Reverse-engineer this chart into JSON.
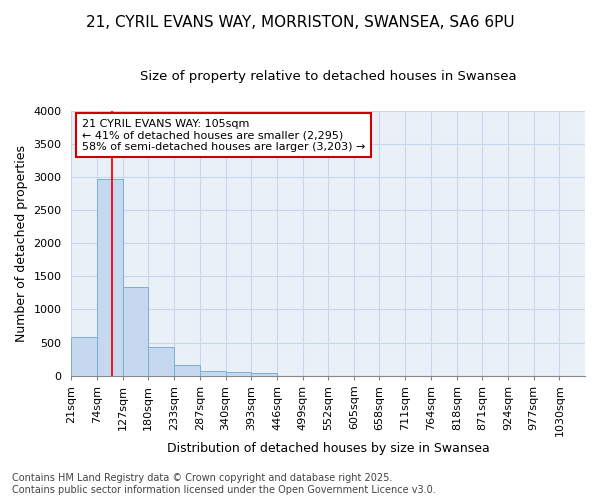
{
  "title_line1": "21, CYRIL EVANS WAY, MORRISTON, SWANSEA, SA6 6PU",
  "title_line2": "Size of property relative to detached houses in Swansea",
  "xlabel": "Distribution of detached houses by size in Swansea",
  "ylabel": "Number of detached properties",
  "footer_line1": "Contains HM Land Registry data © Crown copyright and database right 2025.",
  "footer_line2": "Contains public sector information licensed under the Open Government Licence v3.0.",
  "annotation_line1": "21 CYRIL EVANS WAY: 105sqm",
  "annotation_line2": "← 41% of detached houses are smaller (2,295)",
  "annotation_line3": "58% of semi-detached houses are larger (3,203) →",
  "bar_edges": [
    21,
    74,
    127,
    180,
    233,
    287,
    340,
    393,
    446,
    499,
    552,
    605,
    658,
    711,
    764,
    818,
    871,
    924,
    977,
    1030,
    1083
  ],
  "bar_heights": [
    590,
    2970,
    1340,
    430,
    160,
    75,
    50,
    45,
    0,
    0,
    0,
    0,
    0,
    0,
    0,
    0,
    0,
    0,
    0,
    0
  ],
  "bar_color": "#c5d8f0",
  "bar_edge_color": "#7aafd4",
  "red_line_x": 105,
  "ylim": [
    0,
    4000
  ],
  "yticks": [
    0,
    500,
    1000,
    1500,
    2000,
    2500,
    3000,
    3500,
    4000
  ],
  "bg_color": "#ffffff",
  "plot_bg_color": "#eaf0f8",
  "annotation_box_color": "#ffffff",
  "annotation_box_edge": "#cc0000",
  "grid_color": "#c8d8ec",
  "title_fontsize": 11,
  "subtitle_fontsize": 9.5,
  "axis_label_fontsize": 9,
  "tick_fontsize": 8,
  "annotation_fontsize": 8,
  "footer_fontsize": 7
}
